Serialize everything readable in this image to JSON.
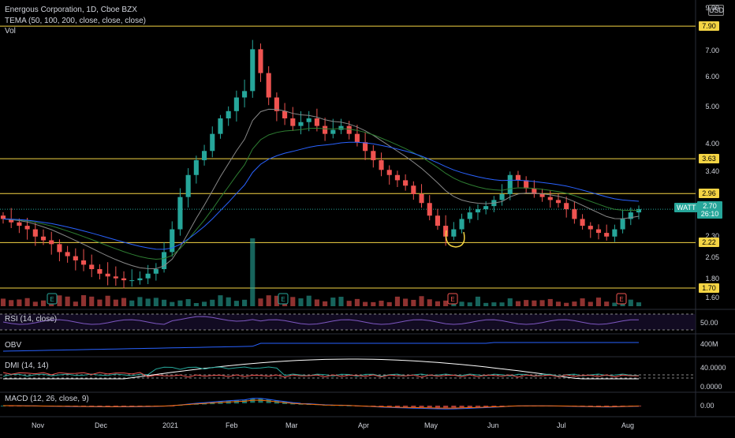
{
  "header": {
    "title": "Energous Corporation, 1D, Cboe BZX",
    "tema_label": "TEMA (50, 100, 200, close, close, close)",
    "vol_label": "Vol"
  },
  "currency": "USD",
  "symbol_tag": "WATT",
  "last_price": "2.70",
  "countdown": "26:10",
  "price_axis_labels": [
    "9.00",
    "7.00",
    "6.00",
    "5.00",
    "4.00",
    "3.40",
    "2.30",
    "2.05",
    "1.80",
    "1.60"
  ],
  "level_tags": [
    "7.90",
    "3.63",
    "2.96",
    "2.22",
    "1.70"
  ],
  "earnings_marker": "E",
  "time_axis_labels": [
    "Nov",
    "Dec",
    "2021",
    "Feb",
    "Mar",
    "Apr",
    "May",
    "Jun",
    "Jul",
    "Aug"
  ],
  "indicators": {
    "rsi": {
      "label": "RSI (14, close)",
      "value": "50.00"
    },
    "obv": {
      "label": "OBV",
      "value": "400M"
    },
    "dmi": {
      "label": "DMI (14, 14)",
      "value_top": "40.0000",
      "value_bottom": "0.0000"
    },
    "macd": {
      "label": "MACD (12, 26, close, 9)",
      "value": "0.00"
    }
  },
  "colors": {
    "up": "#26a69a",
    "down": "#ef5350",
    "level": "#f4d444",
    "rsi": "#7e57c2",
    "obv": "#2962ff",
    "ema_blue": "#2962ff",
    "ema_green": "#2e7d32",
    "ema_grey": "#888888",
    "annotation": "#f4d444"
  },
  "chart_data": {
    "type": "candlestick",
    "scale": "log",
    "ylim": [
      1.55,
      9.0
    ],
    "horizontal_levels": [
      7.9,
      3.63,
      2.96,
      2.22,
      1.7
    ],
    "last_price": 2.7,
    "timeline": [
      "Nov",
      "Dec",
      "2021",
      "Feb",
      "Mar",
      "Apr",
      "May",
      "Jun",
      "Jul",
      "Aug"
    ],
    "close_path": [
      2.55,
      2.5,
      2.45,
      2.4,
      2.3,
      2.25,
      2.2,
      2.1,
      2.05,
      2.0,
      1.95,
      1.9,
      1.85,
      1.82,
      1.8,
      1.78,
      1.78,
      1.8,
      1.85,
      1.9,
      2.1,
      2.4,
      2.9,
      3.3,
      3.6,
      3.8,
      4.2,
      4.6,
      4.8,
      5.2,
      5.4,
      6.9,
      6.0,
      5.2,
      4.8,
      4.6,
      4.4,
      4.5,
      4.6,
      4.4,
      4.2,
      4.3,
      4.4,
      4.2,
      4.0,
      3.8,
      3.6,
      3.4,
      3.3,
      3.2,
      3.1,
      2.95,
      2.8,
      2.6,
      2.45,
      2.3,
      2.4,
      2.55,
      2.65,
      2.7,
      2.75,
      2.85,
      2.95,
      3.3,
      3.2,
      3.05,
      2.95,
      2.9,
      2.85,
      2.8,
      2.7,
      2.55,
      2.45,
      2.4,
      2.35,
      2.3,
      2.4,
      2.55,
      2.65,
      2.7
    ]
  }
}
